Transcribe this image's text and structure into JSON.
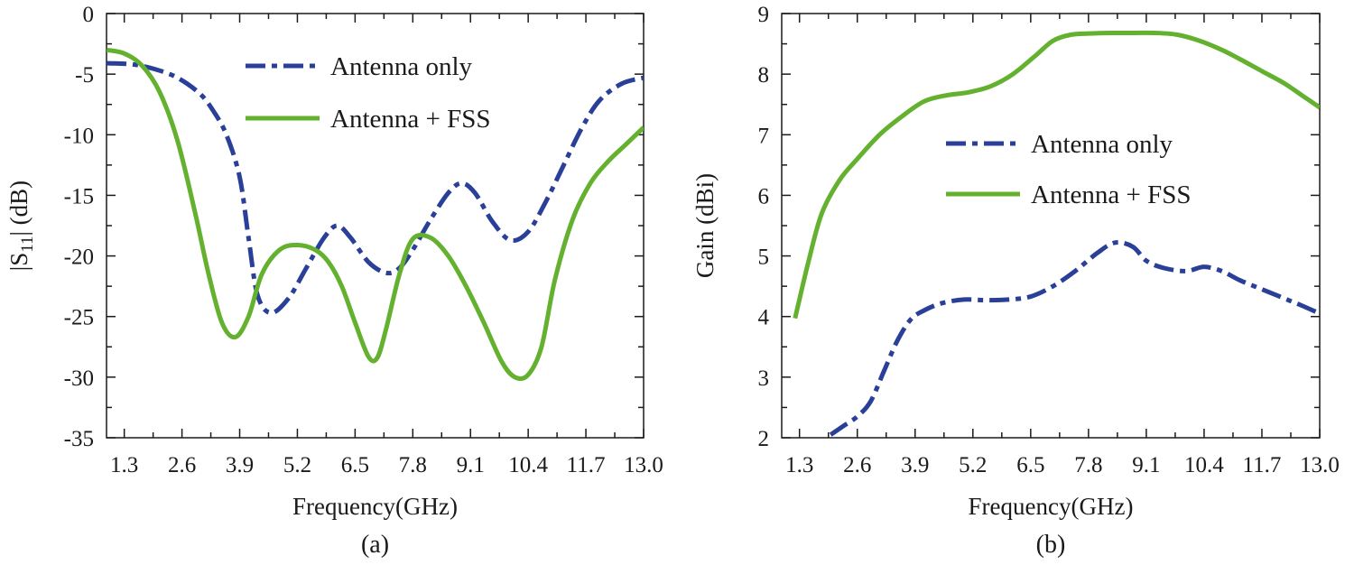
{
  "colors": {
    "antenna_only": "#2a3f98",
    "antenna_fss": "#63b12e",
    "axis": "#1a1a1a"
  },
  "chart_data": [
    {
      "panel_label": "(a)",
      "type": "line",
      "xlabel": "Frequency(GHz)",
      "ylabel_main": "|S",
      "ylabel_sub": "11",
      "ylabel_tail": "| (dB)",
      "xlim": [
        0.9,
        13.0
      ],
      "ylim": [
        -35,
        0
      ],
      "xticks": [
        1.3,
        2.6,
        3.9,
        5.2,
        6.5,
        7.8,
        9.1,
        10.4,
        11.7,
        13.0
      ],
      "xtick_labels": [
        "1.3",
        "2.6",
        "3.9",
        "5.2",
        "6.5",
        "7.8",
        "9.1",
        "10.4",
        "11.7",
        "13.0"
      ],
      "yticks": [
        0,
        -5,
        -10,
        -15,
        -20,
        -25,
        -30,
        -35
      ],
      "ytick_labels": [
        "0",
        "-5",
        "-10",
        "-15",
        "-20",
        "-25",
        "-30",
        "-35"
      ],
      "legend_placement": "top-right",
      "series": [
        {
          "name": "Antenna only",
          "style": "dashdot",
          "x": [
            0.9,
            1.5,
            2.0,
            2.5,
            3.0,
            3.3,
            3.6,
            3.9,
            4.1,
            4.3,
            4.6,
            5.0,
            5.4,
            5.8,
            6.1,
            6.4,
            6.8,
            7.2,
            7.5,
            7.8,
            8.2,
            8.6,
            8.9,
            9.2,
            9.6,
            10.0,
            10.4,
            10.8,
            11.2,
            11.6,
            12.0,
            12.5,
            13.0
          ],
          "y": [
            -4.1,
            -4.2,
            -4.6,
            -5.3,
            -6.6,
            -8.0,
            -10.0,
            -13.5,
            -18.5,
            -23.2,
            -24.7,
            -23.5,
            -21.0,
            -18.5,
            -17.5,
            -18.5,
            -20.5,
            -21.4,
            -21.0,
            -19.5,
            -17.0,
            -14.8,
            -14.0,
            -14.8,
            -17.2,
            -18.7,
            -18.0,
            -15.5,
            -12.5,
            -9.5,
            -7.2,
            -5.8,
            -5.3
          ]
        },
        {
          "name": "Antenna + FSS",
          "style": "solid",
          "x": [
            0.9,
            1.3,
            1.7,
            2.1,
            2.5,
            2.9,
            3.2,
            3.5,
            3.8,
            4.1,
            4.4,
            4.8,
            5.2,
            5.6,
            5.9,
            6.2,
            6.5,
            6.8,
            7.0,
            7.2,
            7.5,
            7.8,
            8.2,
            8.6,
            9.0,
            9.4,
            9.8,
            10.1,
            10.4,
            10.7,
            11.0,
            11.4,
            11.8,
            12.2,
            12.6,
            13.0
          ],
          "y": [
            -3.0,
            -3.3,
            -4.3,
            -6.5,
            -10.5,
            -16.5,
            -21.5,
            -25.5,
            -26.7,
            -25.0,
            -21.5,
            -19.5,
            -19.1,
            -19.5,
            -20.5,
            -22.5,
            -25.5,
            -28.3,
            -28.4,
            -26.0,
            -21.5,
            -18.6,
            -18.5,
            -20.0,
            -22.5,
            -25.5,
            -28.7,
            -30.0,
            -29.8,
            -27.5,
            -22.0,
            -17.0,
            -14.0,
            -12.2,
            -10.8,
            -9.4
          ]
        }
      ]
    },
    {
      "panel_label": "(b)",
      "type": "line",
      "xlabel": "Frequency(GHz)",
      "ylabel": "Gain (dBi)",
      "xlim": [
        0.9,
        13.0
      ],
      "ylim": [
        2,
        9
      ],
      "xticks": [
        1.3,
        2.6,
        3.9,
        5.2,
        6.5,
        7.8,
        9.1,
        10.4,
        11.7,
        13.0
      ],
      "xtick_labels": [
        "1.3",
        "2.6",
        "3.9",
        "5.2",
        "6.5",
        "7.8",
        "9.1",
        "10.4",
        "11.7",
        "13.0"
      ],
      "yticks": [
        2,
        3,
        4,
        5,
        6,
        7,
        8,
        9
      ],
      "ytick_labels": [
        "2",
        "3",
        "4",
        "5",
        "6",
        "7",
        "8",
        "9"
      ],
      "legend_placement": "center-right",
      "series": [
        {
          "name": "Antenna only",
          "style": "dashdot",
          "x": [
            2.0,
            2.3,
            2.6,
            2.9,
            3.2,
            3.5,
            3.8,
            4.1,
            4.5,
            5.0,
            5.5,
            6.0,
            6.5,
            7.0,
            7.5,
            8.0,
            8.4,
            8.8,
            9.1,
            9.5,
            10.0,
            10.4,
            10.8,
            11.2,
            11.7,
            12.2,
            12.6,
            13.0
          ],
          "y": [
            2.05,
            2.2,
            2.35,
            2.6,
            3.1,
            3.6,
            3.95,
            4.1,
            4.22,
            4.28,
            4.27,
            4.28,
            4.33,
            4.5,
            4.75,
            5.05,
            5.22,
            5.15,
            4.92,
            4.8,
            4.75,
            4.82,
            4.75,
            4.6,
            4.45,
            4.3,
            4.18,
            4.05
          ]
        },
        {
          "name": "Antenna + FSS",
          "style": "solid",
          "x": [
            1.2,
            1.5,
            1.8,
            2.2,
            2.6,
            3.1,
            3.6,
            4.1,
            4.6,
            5.1,
            5.6,
            6.1,
            6.6,
            7.0,
            7.4,
            7.8,
            8.3,
            8.8,
            9.3,
            9.8,
            10.3,
            10.8,
            11.2,
            11.7,
            12.2,
            12.6,
            13.0
          ],
          "y": [
            3.97,
            4.9,
            5.7,
            6.25,
            6.6,
            7.0,
            7.3,
            7.55,
            7.65,
            7.7,
            7.8,
            8.0,
            8.3,
            8.55,
            8.65,
            8.67,
            8.68,
            8.68,
            8.68,
            8.65,
            8.55,
            8.4,
            8.25,
            8.05,
            7.85,
            7.65,
            7.45
          ]
        }
      ]
    }
  ]
}
